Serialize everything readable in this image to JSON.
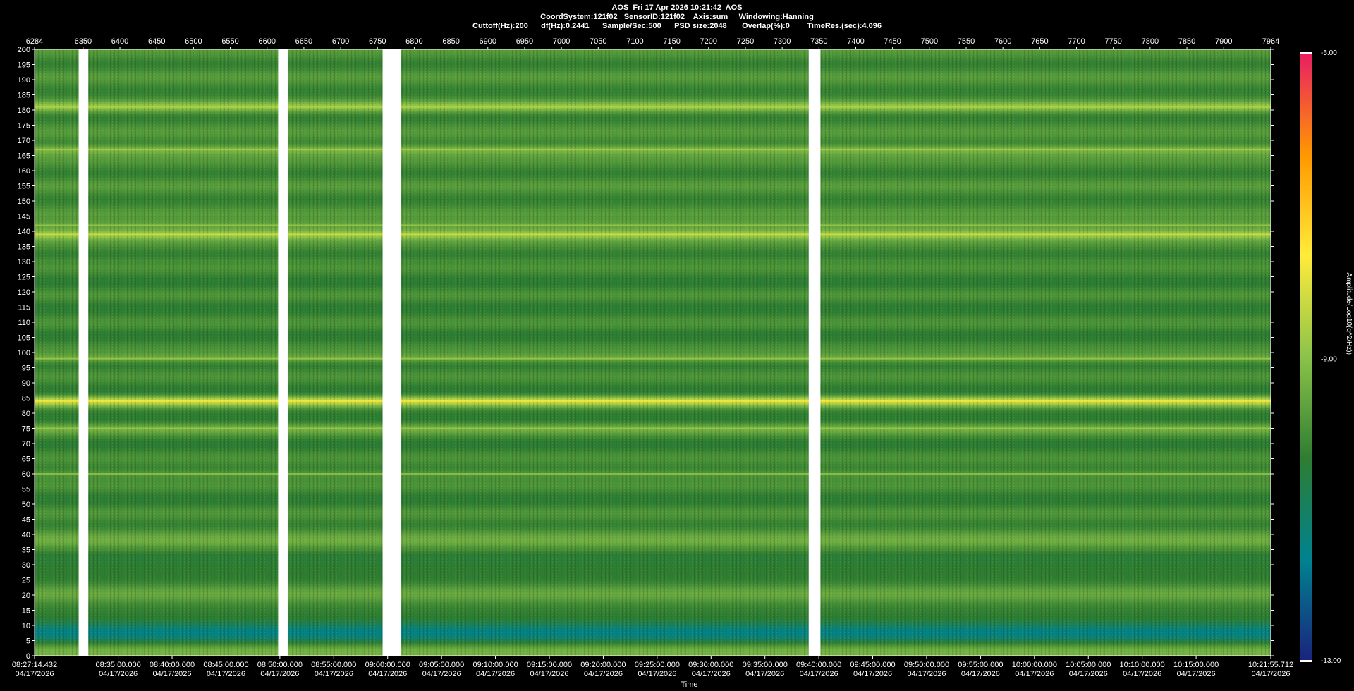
{
  "header": {
    "line1": "AOS  Fri 17 Apr 2026 10:21:42  AOS",
    "line2": "CoordSystem:121f02   SensorID:121f02    Axis:sum     Windowing:Hanning",
    "line3": "Cuttoff(Hz):200      df(Hz):0.2441      Sample/Sec:500      PSD size:2048       Overlap(%):0        TimeRes.(sec):4.096"
  },
  "chart_data": {
    "type": "heatmap",
    "title": "AOS  Fri 17 Apr 2026 10:21:42  AOS",
    "ylabel": "",
    "xlabel": "Time",
    "ylim": [
      0,
      200
    ],
    "y_ticks": [
      0,
      5,
      10,
      15,
      20,
      25,
      30,
      35,
      40,
      45,
      50,
      55,
      60,
      65,
      70,
      75,
      80,
      85,
      90,
      95,
      100,
      105,
      110,
      115,
      120,
      125,
      130,
      135,
      140,
      145,
      150,
      155,
      160,
      165,
      170,
      175,
      180,
      185,
      190,
      195,
      200
    ],
    "index_range": [
      6284,
      7964
    ],
    "index_ticks": [
      "6284",
      "6350",
      "6400",
      "6450",
      "6500",
      "6550",
      "6600",
      "6650",
      "6700",
      "6750",
      "6800",
      "6850",
      "6900",
      "6950",
      "7000",
      "7050",
      "7100",
      "7150",
      "7200",
      "7250",
      "7300",
      "7350",
      "7400",
      "7450",
      "7500",
      "7550",
      "7600",
      "7650",
      "7700",
      "7750",
      "7800",
      "7850",
      "7900",
      "7964"
    ],
    "time_start": "08:27:14.432",
    "time_end": "10:21:55.712",
    "time_ticks": [
      {
        "time": "08:27:14.432",
        "date": "04/17/2026"
      },
      {
        "time": "08:35:00.000",
        "date": "04/17/2026"
      },
      {
        "time": "08:40:00.000",
        "date": "04/17/2026"
      },
      {
        "time": "08:45:00.000",
        "date": "04/17/2026"
      },
      {
        "time": "08:50:00.000",
        "date": "04/17/2026"
      },
      {
        "time": "08:55:00.000",
        "date": "04/17/2026"
      },
      {
        "time": "09:00:00.000",
        "date": "04/17/2026"
      },
      {
        "time": "09:05:00.000",
        "date": "04/17/2026"
      },
      {
        "time": "09:10:00.000",
        "date": "04/17/2026"
      },
      {
        "time": "09:15:00.000",
        "date": "04/17/2026"
      },
      {
        "time": "09:20:00.000",
        "date": "04/17/2026"
      },
      {
        "time": "09:25:00.000",
        "date": "04/17/2026"
      },
      {
        "time": "09:30:00.000",
        "date": "04/17/2026"
      },
      {
        "time": "09:35:00.000",
        "date": "04/17/2026"
      },
      {
        "time": "09:40:00.000",
        "date": "04/17/2026"
      },
      {
        "time": "09:45:00.000",
        "date": "04/17/2026"
      },
      {
        "time": "09:50:00.000",
        "date": "04/17/2026"
      },
      {
        "time": "09:55:00.000",
        "date": "04/17/2026"
      },
      {
        "time": "10:00:00.000",
        "date": "04/17/2026"
      },
      {
        "time": "10:05:00.000",
        "date": "04/17/2026"
      },
      {
        "time": "10:10:00.000",
        "date": "04/17/2026"
      },
      {
        "time": "10:15:00.000",
        "date": "04/17/2026"
      },
      {
        "time": "10:21:55.712",
        "date": "04/17/2026"
      }
    ],
    "data_gaps_index": [
      [
        6344,
        6357
      ],
      [
        6615,
        6628
      ],
      [
        6757,
        6782
      ],
      [
        7336,
        7352
      ]
    ],
    "spectral_bands_hz": [
      {
        "center": 1.5,
        "level": -9.0
      },
      {
        "center": 6,
        "level": -11.0
      },
      {
        "center": 10,
        "level": -11.2
      },
      {
        "center": 13,
        "level": -9.5
      },
      {
        "center": 24,
        "level": -9.6
      },
      {
        "center": 29,
        "level": -10.8
      },
      {
        "center": 38,
        "level": -9.4
      },
      {
        "center": 60,
        "level": -9.4
      },
      {
        "center": 75,
        "level": -9.3
      },
      {
        "center": 84,
        "level": -8.1
      },
      {
        "center": 98,
        "level": -9.2
      },
      {
        "center": 139,
        "level": -8.7
      },
      {
        "center": 142,
        "level": -9.3
      },
      {
        "center": 167,
        "level": -9.0
      },
      {
        "center": 181,
        "level": -9.0
      }
    ],
    "colorbar": {
      "label": "Amplitude(Log10(g^2/Hz))",
      "min": -13.0,
      "max": -5.0,
      "tick_labels": [
        "-5.00",
        "-9.00",
        "-13.00"
      ],
      "colors": [
        "#1a237e",
        "#00838f",
        "#2e7d32",
        "#8bc34a",
        "#ffeb3b",
        "#ff9800",
        "#e91e63"
      ]
    }
  }
}
